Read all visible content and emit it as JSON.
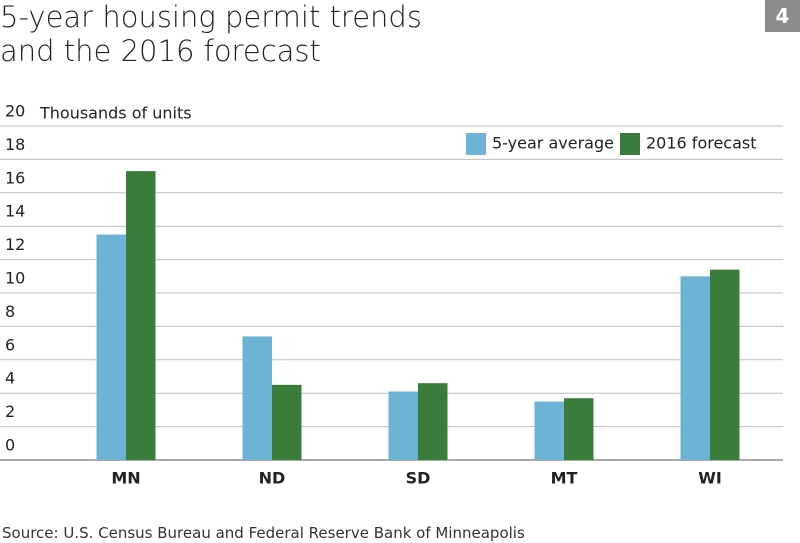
{
  "chart_data": {
    "type": "bar",
    "title": "5-year housing permit trends and the 2016 forecast",
    "page_number": "4",
    "y_label": "Thousands of units",
    "source": "Source: U.S. Census Bureau and Federal Reserve Bank of Minneapolis",
    "categories": [
      "MN",
      "ND",
      "SD",
      "MT",
      "WI"
    ],
    "series": [
      {
        "name": "5-year average",
        "color": "#6db3d6",
        "values": [
          13.5,
          7.4,
          4.1,
          3.5,
          11.0
        ]
      },
      {
        "name": "2016 forecast",
        "color": "#3a7d3b",
        "values": [
          17.3,
          4.5,
          4.6,
          3.7,
          11.4
        ]
      }
    ],
    "ylim": [
      0,
      20
    ],
    "yticks": [
      0,
      2,
      4,
      6,
      8,
      10,
      12,
      14,
      16,
      18,
      20
    ],
    "grid": true
  }
}
